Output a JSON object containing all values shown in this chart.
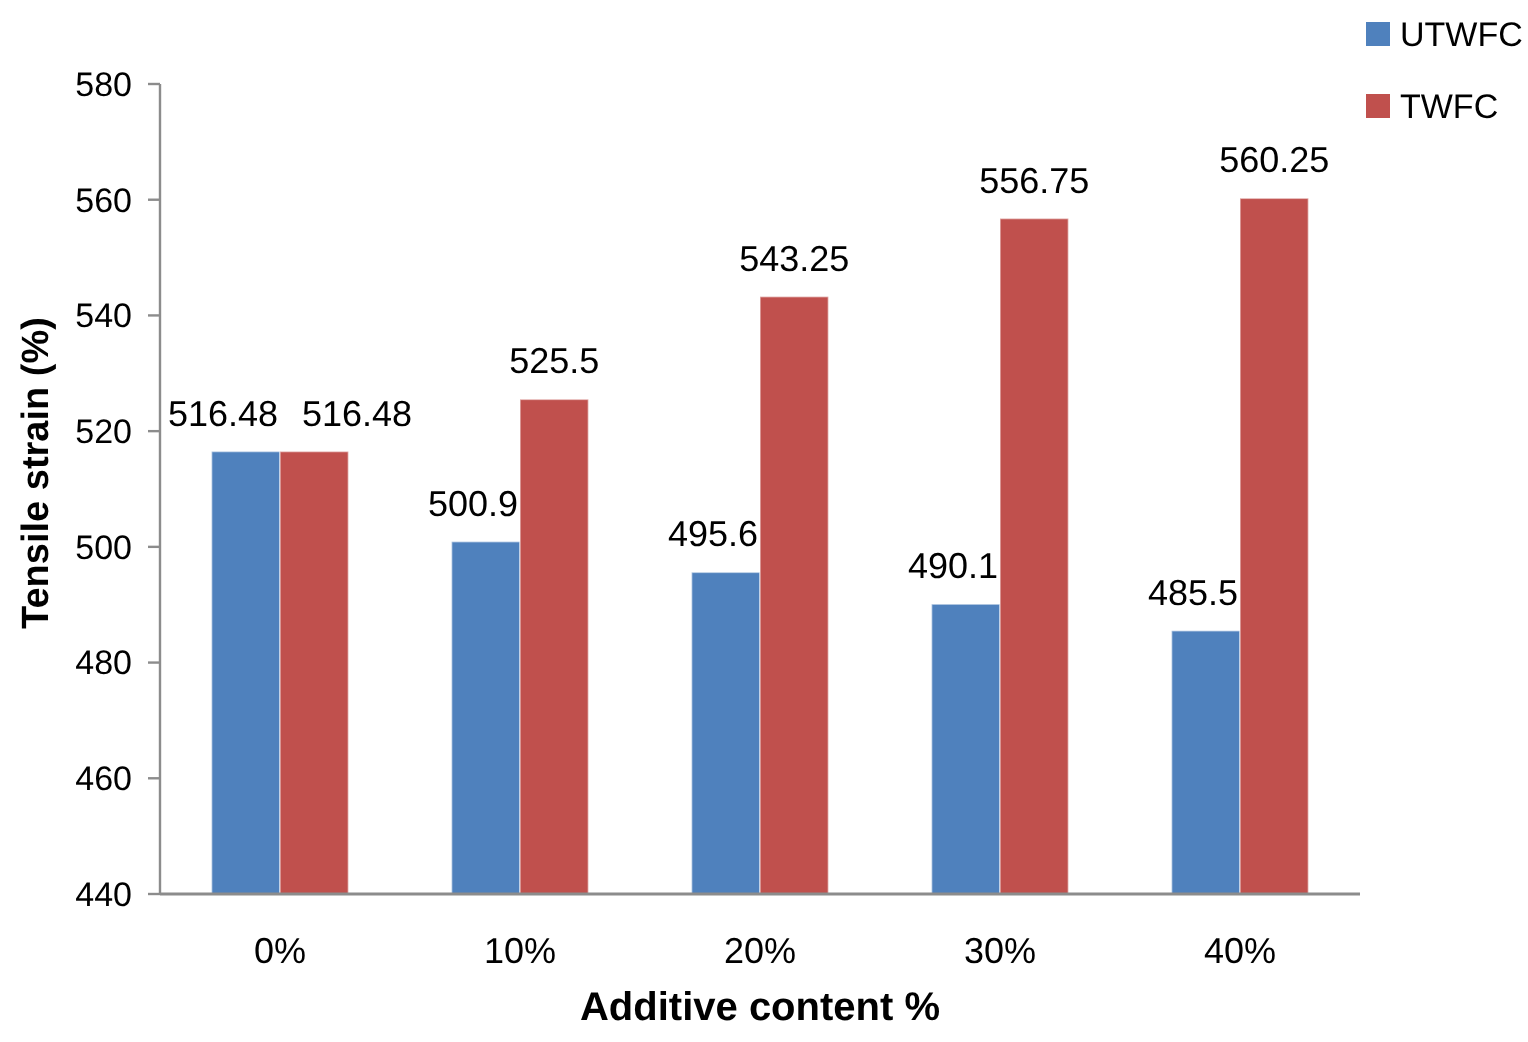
{
  "chart_data": {
    "type": "bar",
    "xlabel": "Additive content %",
    "ylabel": "Tensile strain (%)",
    "categories": [
      "0%",
      "10%",
      "20%",
      "30%",
      "40%"
    ],
    "series": [
      {
        "name": "UTWFC",
        "color": "#4f81bd",
        "values": [
          516.48,
          500.9,
          495.6,
          490.1,
          485.5
        ]
      },
      {
        "name": "TWFC",
        "color": "#c0504d",
        "values": [
          516.48,
          525.5,
          543.25,
          556.75,
          560.25
        ]
      }
    ],
    "ylim": [
      440,
      580
    ],
    "yticks": [
      440,
      460,
      480,
      500,
      520,
      540,
      560,
      580
    ],
    "data_labels": true,
    "legend": "top right"
  }
}
